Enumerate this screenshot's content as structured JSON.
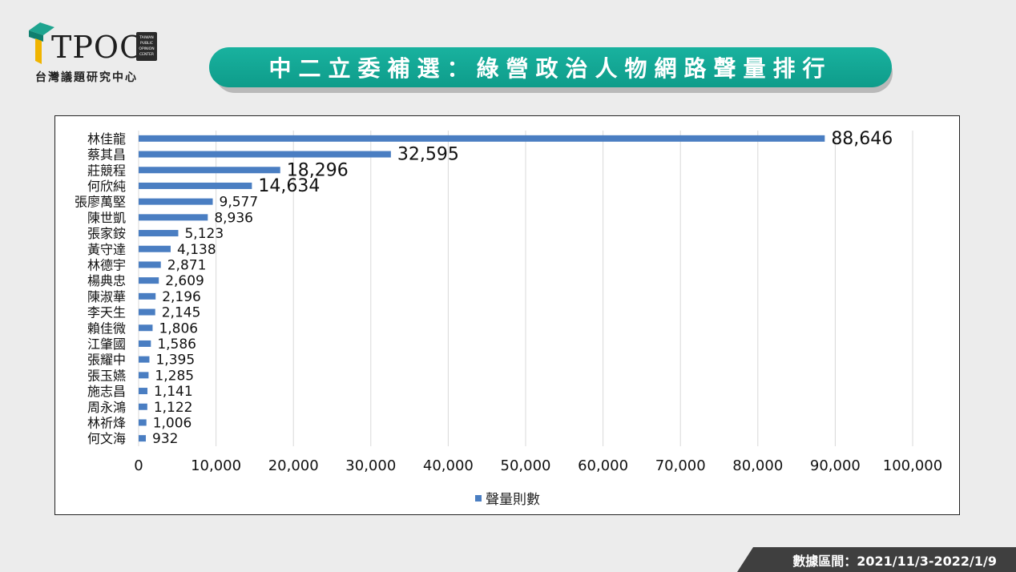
{
  "logo": {
    "name": "TPOC",
    "seal_lines": [
      "TAIWAN",
      "PUBLIC",
      "OPINION",
      "CENTER"
    ],
    "subtitle": "台灣議題研究中心",
    "colors": {
      "green": "#12a089",
      "gold": "#f0b400"
    }
  },
  "title": "中二立委補選：綠營政治人物網路聲量排行",
  "footer": "數據區間：2021/11/3-2022/1/9",
  "colors": {
    "banner": "#12a892",
    "bar": "#4a7ec2",
    "footer": "#3f3f3f"
  },
  "chart_data": {
    "type": "bar",
    "orientation": "horizontal",
    "categories": [
      "林佳龍",
      "蔡其昌",
      "莊競程",
      "何欣純",
      "張廖萬堅",
      "陳世凱",
      "張家銨",
      "黃守達",
      "林德宇",
      "楊典忠",
      "陳淑華",
      "李天生",
      "賴佳微",
      "江肇國",
      "張耀中",
      "張玉嬿",
      "施志昌",
      "周永鴻",
      "林祈烽",
      "何文海"
    ],
    "series": [
      {
        "name": "聲量則數",
        "values": [
          88646,
          32595,
          18296,
          14634,
          9577,
          8936,
          5123,
          4138,
          2871,
          2609,
          2196,
          2145,
          1806,
          1586,
          1395,
          1285,
          1141,
          1122,
          1006,
          932
        ]
      }
    ],
    "value_labels": [
      "88,646",
      "32,595",
      "18,296",
      "14,634",
      "9,577",
      "8,936",
      "5,123",
      "4,138",
      "2,871",
      "2,609",
      "2,196",
      "2,145",
      "1,806",
      "1,586",
      "1,395",
      "1,285",
      "1,141",
      "1,122",
      "1,006",
      "932"
    ],
    "x_ticks": [
      "0",
      "10,000",
      "20,000",
      "30,000",
      "40,000",
      "50,000",
      "60,000",
      "70,000",
      "80,000",
      "90,000",
      "100,000"
    ],
    "xlim": [
      0,
      100000
    ],
    "grid": true,
    "legend": "bottom"
  }
}
